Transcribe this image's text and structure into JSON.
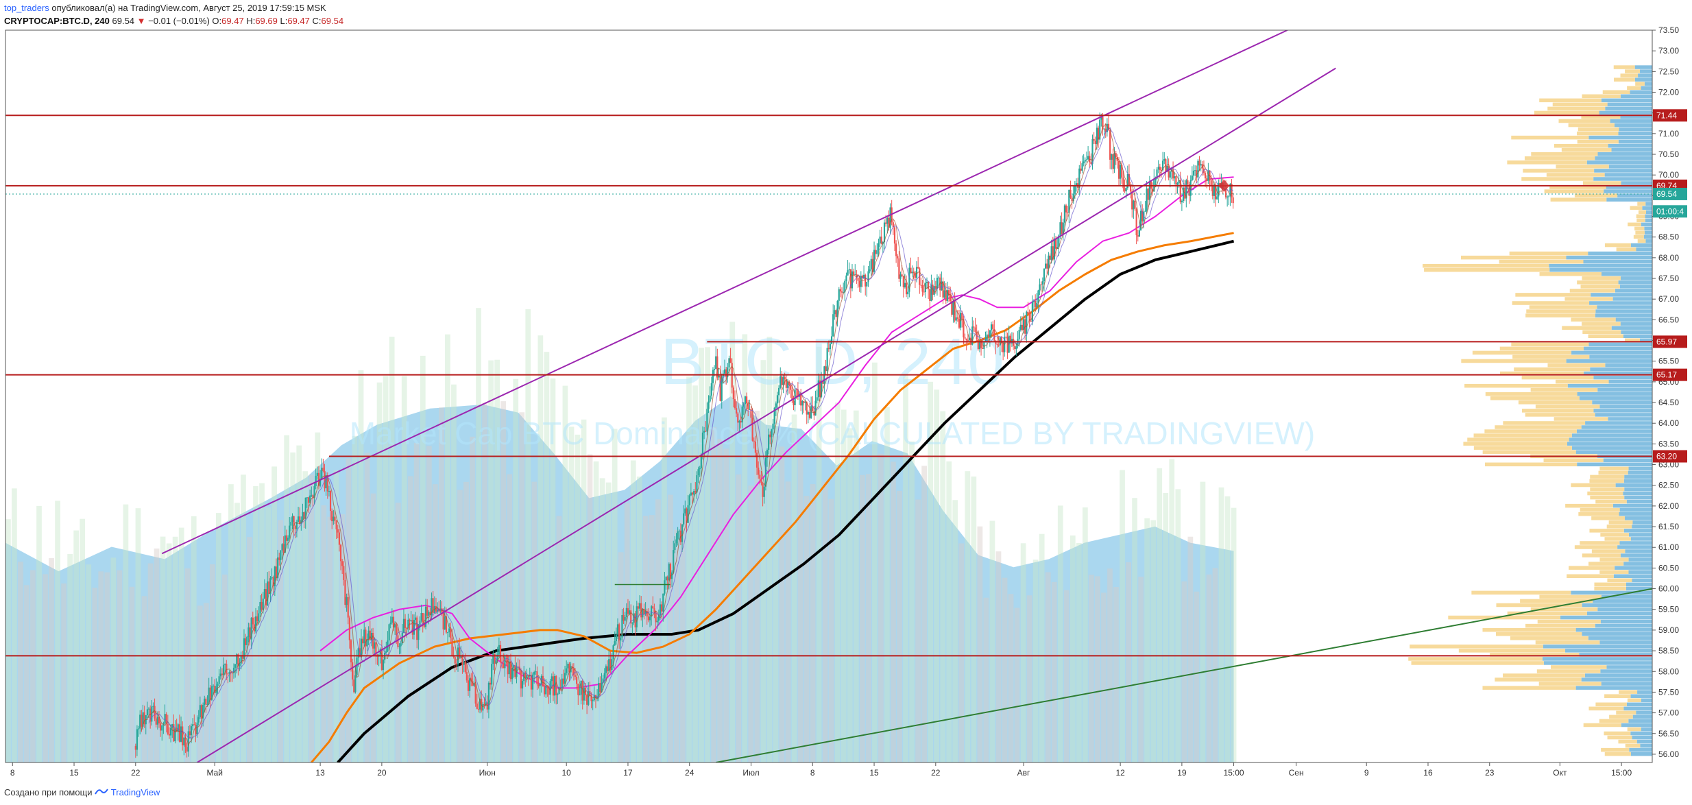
{
  "header": {
    "author": "top_traders",
    "published": "опубликовал(а) на TradingView.com, Август 25, 2019 17:59:15 MSK",
    "symbol": "CRYPTOCAP:BTC.D, 240",
    "price": "69.54",
    "change_arrow": "▼",
    "change": "−0.01 (−0.01%)",
    "o_label": "O:",
    "o": "69.47",
    "h_label": "H:",
    "h": "69.69",
    "l_label": "L:",
    "l": "69.47",
    "c_label": "C:",
    "c": "69.54"
  },
  "footer": {
    "text": "Создано при помощи",
    "brand": "TradingView"
  },
  "watermark": {
    "title": "BTC.D, 240",
    "subtitle": "Market Cap BTC Dominance, % (CALCULATED BY TRADINGVIEW)"
  },
  "colors": {
    "up": "#26a69a",
    "down": "#ef5350",
    "level": "#b71c1c",
    "trend": "#9c27b0",
    "ma_black": "#000000",
    "ma_orange": "#f57c00",
    "ma_magenta": "#e91ee0",
    "trend_green": "#2e7d32",
    "volume": "#8ec9ea",
    "profile_blue": "#6fb4dc",
    "profile_yellow": "#f6d48a"
  },
  "chart_data": {
    "type": "candlestick",
    "symbol": "CRYPTOCAP:BTC.D",
    "timeframe": "240",
    "ylim": [
      55.8,
      73.5
    ],
    "y_ticks": [
      "56.00",
      "56.50",
      "57.00",
      "57.50",
      "58.00",
      "58.50",
      "59.00",
      "59.50",
      "60.00",
      "60.50",
      "61.00",
      "61.50",
      "62.00",
      "62.50",
      "63.00",
      "63.50",
      "64.00",
      "64.50",
      "65.00",
      "65.50",
      "66.00",
      "66.50",
      "67.00",
      "67.50",
      "68.00",
      "68.50",
      "69.00",
      "69.50",
      "70.00",
      "70.50",
      "71.00",
      "71.50",
      "72.00",
      "72.50",
      "73.00",
      "73.50"
    ],
    "x_ticks": [
      {
        "label": "8",
        "x": 0.0
      },
      {
        "label": "15",
        "x": 7
      },
      {
        "label": "22",
        "x": 14
      },
      {
        "label": "Май",
        "x": 23
      },
      {
        "label": "13",
        "x": 35
      },
      {
        "label": "20",
        "x": 42
      },
      {
        "label": "Июн",
        "x": 54
      },
      {
        "label": "10",
        "x": 63
      },
      {
        "label": "17",
        "x": 70
      },
      {
        "label": "24",
        "x": 77
      },
      {
        "label": "Июл",
        "x": 84
      },
      {
        "label": "8",
        "x": 91
      },
      {
        "label": "15",
        "x": 98
      },
      {
        "label": "22",
        "x": 105
      },
      {
        "label": "Авг",
        "x": 115
      },
      {
        "label": "12",
        "x": 126
      },
      {
        "label": "19",
        "x": 133
      },
      {
        "label": "15:00",
        "x": 138.9
      },
      {
        "label": "Сен",
        "x": 146
      },
      {
        "label": "9",
        "x": 154
      },
      {
        "label": "16",
        "x": 161
      },
      {
        "label": "23",
        "x": 168
      },
      {
        "label": "Окт",
        "x": 176
      },
      {
        "label": "15:00",
        "x": 183
      }
    ],
    "x_range": [
      -0.8,
      186.5
    ],
    "price_ohlc_path": [
      [
        14,
        56.2
      ],
      [
        14.5,
        56.7
      ],
      [
        16,
        57.0
      ],
      [
        18,
        56.6
      ],
      [
        20,
        56.3
      ],
      [
        22,
        57.3
      ],
      [
        24,
        57.9
      ],
      [
        26,
        58.5
      ],
      [
        28,
        59.4
      ],
      [
        30,
        60.5
      ],
      [
        31.5,
        61.6
      ],
      [
        33,
        61.8
      ],
      [
        34.5,
        62.6
      ],
      [
        35.2,
        62.9
      ],
      [
        36,
        62.2
      ],
      [
        37,
        61.2
      ],
      [
        38,
        59.6
      ],
      [
        38.8,
        57.5
      ],
      [
        39.5,
        58.6
      ],
      [
        40.5,
        59.0
      ],
      [
        42,
        58.2
      ],
      [
        43,
        59.1
      ],
      [
        44,
        58.8
      ],
      [
        45,
        59.3
      ],
      [
        46,
        59.0
      ],
      [
        47,
        59.4
      ],
      [
        48,
        59.7
      ],
      [
        49,
        59.2
      ],
      [
        50,
        58.6
      ],
      [
        51,
        58.2
      ],
      [
        52,
        57.6
      ],
      [
        53,
        57.3
      ],
      [
        53.8,
        57.0
      ],
      [
        54.5,
        58.2
      ],
      [
        55.5,
        58.5
      ],
      [
        56.5,
        58.0
      ],
      [
        58,
        57.8
      ],
      [
        59.5,
        57.8
      ],
      [
        61,
        57.6
      ],
      [
        62,
        57.7
      ],
      [
        63,
        58.0
      ],
      [
        64,
        57.8
      ],
      [
        65,
        57.5
      ],
      [
        66,
        57.3
      ],
      [
        67,
        57.6
      ],
      [
        68,
        58.3
      ],
      [
        69,
        59.0
      ],
      [
        70,
        59.4
      ],
      [
        71,
        59.3
      ],
      [
        72,
        59.6
      ],
      [
        73,
        59.2
      ],
      [
        74,
        59.8
      ],
      [
        75,
        60.6
      ],
      [
        76,
        61.4
      ],
      [
        77,
        62.0
      ],
      [
        78,
        62.8
      ],
      [
        79,
        64.2
      ],
      [
        79.8,
        65.6
      ],
      [
        80.5,
        64.8
      ],
      [
        81.5,
        65.4
      ],
      [
        82.5,
        64.1
      ],
      [
        83.5,
        64.6
      ],
      [
        84.5,
        63.4
      ],
      [
        85.3,
        62.4
      ],
      [
        86,
        63.5
      ],
      [
        87,
        64.8
      ],
      [
        88,
        65.1
      ],
      [
        89,
        64.6
      ],
      [
        90,
        64.5
      ],
      [
        91,
        64.3
      ],
      [
        92,
        65.0
      ],
      [
        93,
        66.0
      ],
      [
        94,
        67.2
      ],
      [
        95,
        67.5
      ],
      [
        96,
        67.3
      ],
      [
        97,
        67.4
      ],
      [
        98,
        68.0
      ],
      [
        99,
        68.6
      ],
      [
        99.8,
        69.0
      ],
      [
        100.5,
        68.0
      ],
      [
        101.5,
        67.2
      ],
      [
        102.5,
        67.8
      ],
      [
        103.5,
        67.3
      ],
      [
        104.5,
        67.2
      ],
      [
        105.5,
        67.3
      ],
      [
        106.5,
        67.0
      ],
      [
        107.5,
        66.6
      ],
      [
        108.5,
        66.2
      ],
      [
        109.5,
        66.1
      ],
      [
        110.5,
        65.9
      ],
      [
        111.5,
        66.2
      ],
      [
        112.5,
        66.0
      ],
      [
        113.5,
        65.9
      ],
      [
        114.5,
        66.1
      ],
      [
        115.5,
        66.5
      ],
      [
        116.5,
        67.1
      ],
      [
        117.5,
        67.8
      ],
      [
        118.5,
        68.3
      ],
      [
        119.5,
        68.9
      ],
      [
        120.5,
        69.6
      ],
      [
        121.5,
        70.1
      ],
      [
        122.5,
        70.4
      ],
      [
        123.5,
        71.0
      ],
      [
        124.2,
        71.4
      ],
      [
        125,
        70.4
      ],
      [
        126,
        70.0
      ],
      [
        127,
        69.7
      ],
      [
        128,
        68.6
      ],
      [
        129,
        69.5
      ],
      [
        130,
        69.8
      ],
      [
        131,
        70.3
      ],
      [
        132,
        70.0
      ],
      [
        133,
        69.4
      ],
      [
        134,
        69.8
      ],
      [
        135,
        70.2
      ],
      [
        136,
        69.9
      ],
      [
        137,
        69.6
      ],
      [
        138,
        69.5
      ],
      [
        138.9,
        69.54
      ]
    ],
    "horizontal_levels": [
      {
        "label": "71.44",
        "value": 71.44,
        "x_start": -0.8
      },
      {
        "label": "69.74",
        "value": 69.74,
        "x_start": -0.8
      },
      {
        "label": "65.97",
        "value": 65.97,
        "x_start": 79.0
      },
      {
        "label": "65.17",
        "value": 65.17,
        "x_start": -0.8
      },
      {
        "label": "63.20",
        "value": 63.2,
        "x_start": 36.0
      },
      {
        "value": 58.38,
        "x_start": -0.8
      }
    ],
    "price_labels": [
      {
        "text": "71.44",
        "value": 71.44,
        "kind": "level"
      },
      {
        "text": "69.74",
        "value": 69.74,
        "kind": "level"
      },
      {
        "text": "69.54",
        "value": 69.54,
        "kind": "last"
      },
      {
        "text": "01:00:4",
        "value": 69.12,
        "kind": "timer"
      },
      {
        "text": "65.97",
        "value": 65.97,
        "kind": "level"
      },
      {
        "text": "65.17",
        "value": 65.17,
        "kind": "level"
      },
      {
        "text": "63.20",
        "value": 63.2,
        "kind": "level"
      }
    ],
    "trend_lines": [
      {
        "name": "upper_channel",
        "color": "trend",
        "points": [
          [
            17.0,
            60.85
          ],
          [
            145.0,
            73.5
          ]
        ]
      },
      {
        "name": "lower_channel",
        "color": "trend",
        "points": [
          [
            21.0,
            55.8
          ],
          [
            150.5,
            72.58
          ]
        ]
      },
      {
        "name": "long_support",
        "color": "trend_green",
        "points": [
          [
            80.0,
            55.8
          ],
          [
            186.5,
            60.0
          ]
        ]
      }
    ],
    "moving_averages": [
      {
        "name": "MA_black",
        "color": "ma_black",
        "width": 4,
        "points": [
          [
            37,
            55.8
          ],
          [
            40,
            56.5
          ],
          [
            45,
            57.4
          ],
          [
            50,
            58.1
          ],
          [
            55,
            58.5
          ],
          [
            60,
            58.65
          ],
          [
            65,
            58.8
          ],
          [
            70,
            58.9
          ],
          [
            75,
            58.9
          ],
          [
            78,
            59.0
          ],
          [
            82,
            59.4
          ],
          [
            86,
            60.0
          ],
          [
            90,
            60.6
          ],
          [
            94,
            61.3
          ],
          [
            98,
            62.2
          ],
          [
            102,
            63.1
          ],
          [
            106,
            64.0
          ],
          [
            110,
            64.8
          ],
          [
            114,
            65.6
          ],
          [
            118,
            66.3
          ],
          [
            122,
            67.0
          ],
          [
            126,
            67.6
          ],
          [
            130,
            67.95
          ],
          [
            134,
            68.15
          ],
          [
            138.9,
            68.4
          ]
        ]
      },
      {
        "name": "MA_orange",
        "color": "ma_orange",
        "width": 3,
        "points": [
          [
            34,
            55.8
          ],
          [
            36,
            56.3
          ],
          [
            38,
            57.0
          ],
          [
            40,
            57.6
          ],
          [
            44,
            58.2
          ],
          [
            48,
            58.6
          ],
          [
            52,
            58.8
          ],
          [
            56,
            58.9
          ],
          [
            60,
            59.0
          ],
          [
            62,
            59.0
          ],
          [
            65,
            58.85
          ],
          [
            68,
            58.5
          ],
          [
            71,
            58.45
          ],
          [
            74,
            58.6
          ],
          [
            77,
            58.9
          ],
          [
            80,
            59.5
          ],
          [
            83,
            60.2
          ],
          [
            86,
            60.9
          ],
          [
            89,
            61.6
          ],
          [
            92,
            62.4
          ],
          [
            95,
            63.2
          ],
          [
            98,
            64.1
          ],
          [
            101,
            64.8
          ],
          [
            104,
            65.3
          ],
          [
            107,
            65.8
          ],
          [
            110,
            66.0
          ],
          [
            113,
            66.25
          ],
          [
            116,
            66.7
          ],
          [
            119,
            67.2
          ],
          [
            122,
            67.6
          ],
          [
            125,
            67.95
          ],
          [
            128,
            68.15
          ],
          [
            131,
            68.3
          ],
          [
            134,
            68.4
          ],
          [
            138.9,
            68.6
          ]
        ]
      },
      {
        "name": "MA_magenta",
        "color": "ma_magenta",
        "width": 2,
        "points": [
          [
            35,
            58.5
          ],
          [
            38,
            59.0
          ],
          [
            41,
            59.3
          ],
          [
            44,
            59.5
          ],
          [
            47,
            59.6
          ],
          [
            50,
            59.4
          ],
          [
            52,
            58.8
          ],
          [
            55,
            58.3
          ],
          [
            58,
            57.9
          ],
          [
            61,
            57.6
          ],
          [
            64,
            57.6
          ],
          [
            67,
            57.7
          ],
          [
            70,
            58.4
          ],
          [
            73,
            59.0
          ],
          [
            76,
            59.8
          ],
          [
            79,
            60.8
          ],
          [
            82,
            61.8
          ],
          [
            85,
            62.6
          ],
          [
            88,
            63.3
          ],
          [
            91,
            63.9
          ],
          [
            94,
            64.5
          ],
          [
            97,
            65.4
          ],
          [
            100,
            66.2
          ],
          [
            103,
            66.6
          ],
          [
            106,
            67.0
          ],
          [
            108,
            67.1
          ],
          [
            110,
            67.0
          ],
          [
            112,
            66.8
          ],
          [
            115,
            66.8
          ],
          [
            118,
            67.2
          ],
          [
            121,
            67.9
          ],
          [
            124,
            68.4
          ],
          [
            127,
            68.6
          ],
          [
            130,
            69.0
          ],
          [
            133,
            69.5
          ],
          [
            136,
            69.9
          ],
          [
            138.9,
            69.95
          ]
        ]
      }
    ],
    "volume_profile_x": [
      -0.8,
      138.9
    ],
    "volume_profile": [
      [
        0,
        5.4
      ],
      [
        6,
        4.7
      ],
      [
        12,
        5.3
      ],
      [
        18,
        5.0
      ],
      [
        24,
        5.8
      ],
      [
        30,
        6.5
      ],
      [
        34,
        7.0
      ],
      [
        38,
        7.8
      ],
      [
        42,
        8.3
      ],
      [
        48,
        8.7
      ],
      [
        54,
        8.8
      ],
      [
        58,
        8.6
      ],
      [
        62,
        7.6
      ],
      [
        66,
        6.5
      ],
      [
        70,
        6.7
      ],
      [
        74,
        7.4
      ],
      [
        78,
        8.4
      ],
      [
        82,
        9.0
      ],
      [
        86,
        8.3
      ],
      [
        90,
        8.2
      ],
      [
        94,
        7.3
      ],
      [
        98,
        7.9
      ],
      [
        102,
        7.6
      ],
      [
        106,
        6.2
      ],
      [
        110,
        5.1
      ],
      [
        114,
        4.8
      ],
      [
        118,
        5.0
      ],
      [
        122,
        5.4
      ],
      [
        126,
        5.6
      ],
      [
        130,
        5.8
      ],
      [
        134,
        5.4
      ],
      [
        138.9,
        5.2
      ]
    ],
    "volume_profile_scale": [
      0,
      18
    ]
  }
}
